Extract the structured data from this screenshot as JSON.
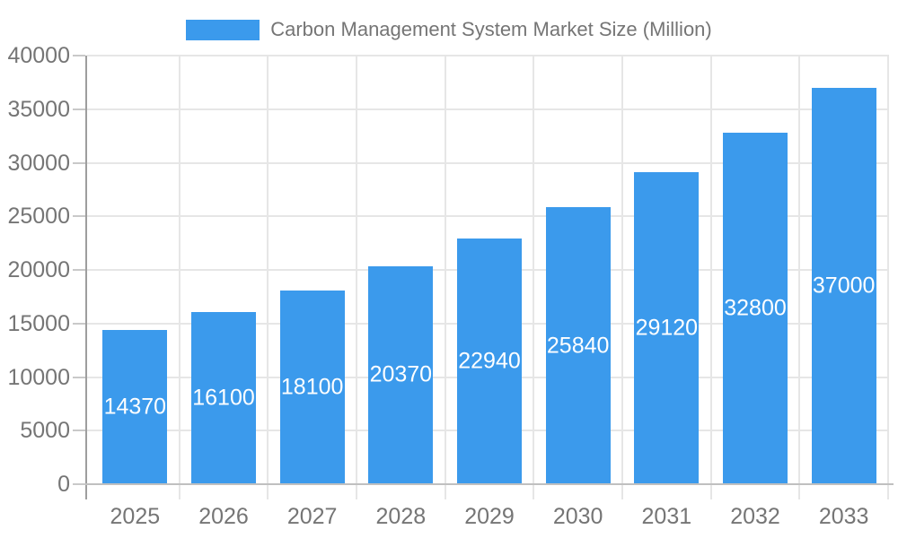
{
  "chart_data": {
    "type": "bar",
    "title": "Carbon Management System Market Size (Million)",
    "legend_entries": [
      "Carbon Management System Market Size (Million)"
    ],
    "legend_position": "top-center",
    "categories": [
      "2025",
      "2026",
      "2027",
      "2028",
      "2029",
      "2030",
      "2031",
      "2032",
      "2033"
    ],
    "values": [
      14370,
      16100,
      18100,
      20370,
      22940,
      25840,
      29120,
      32800,
      37000
    ],
    "xlabel": "",
    "ylabel": "",
    "ylim": [
      0,
      40000
    ],
    "yticks": [
      0,
      5000,
      10000,
      15000,
      20000,
      25000,
      30000,
      35000,
      40000
    ],
    "grid": "horizontal-and-vertical",
    "bar_color": "#3b9aec",
    "value_label_color": "#ffffff",
    "axis_text_color": "#757575",
    "value_labels_inside_bars": true
  }
}
